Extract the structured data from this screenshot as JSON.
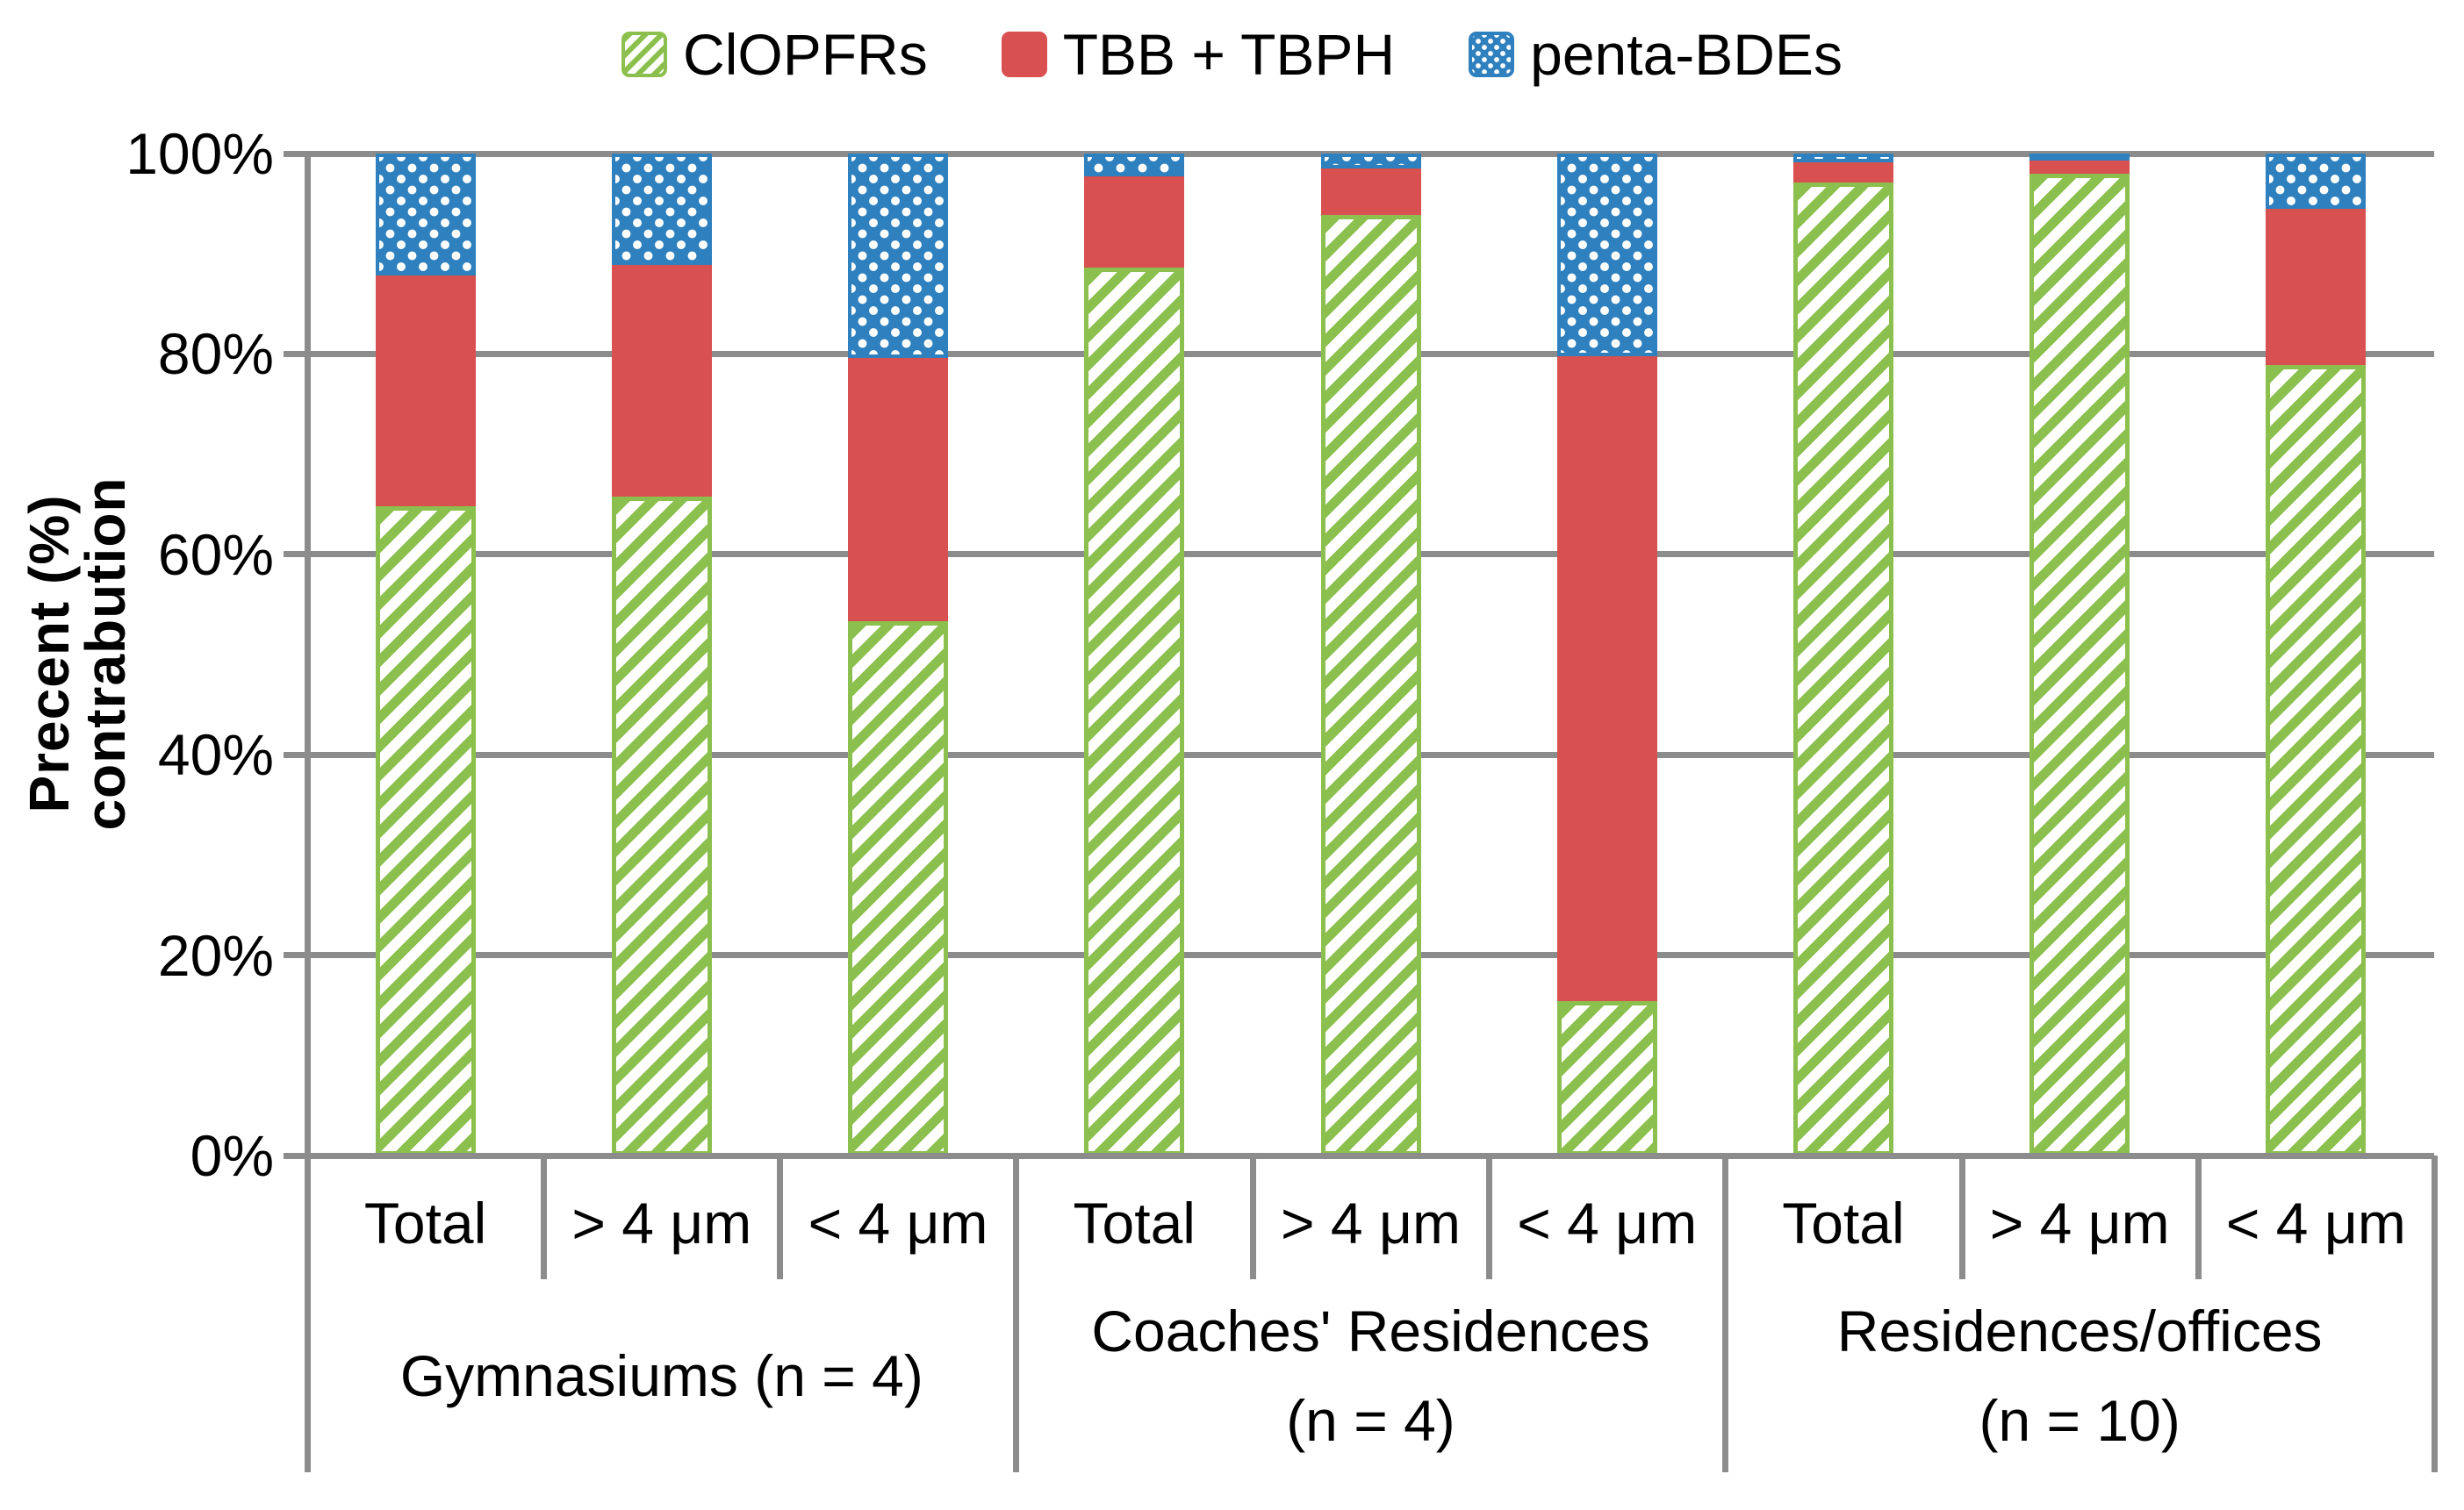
{
  "chart_data": {
    "type": "bar",
    "subtype": "stacked-100-percent",
    "title": "",
    "y_axis": {
      "label": "Precent (%) contrabution",
      "ticks": [
        "0%",
        "20%",
        "40%",
        "60%",
        "80%",
        "100%"
      ],
      "min": 0,
      "max": 100,
      "tick_step": 20,
      "grid": true
    },
    "legend_position": "top",
    "legend": [
      {
        "label": "ClOPFRs",
        "color": "#8CC04E",
        "pattern": "diagonal-hatch"
      },
      {
        "label": "TBB + TBPH",
        "color": "#D85050",
        "pattern": "solid"
      },
      {
        "label": "penta-BDEs",
        "color": "#2E80BE",
        "pattern": "dots"
      }
    ],
    "series_order": [
      "ClOPFRs",
      "TBB + TBPH",
      "penta-BDEs"
    ],
    "groups": [
      {
        "label_lines": [
          "Gymnasiums (n = 4)"
        ],
        "bars": [
          {
            "category": "Total",
            "values": [
              64.8,
              23.0,
              12.2
            ]
          },
          {
            "category": "> 4 μm",
            "values": [
              65.8,
              23.1,
              11.1
            ]
          },
          {
            "category": "< 4 μm",
            "values": [
              53.3,
              26.3,
              20.4
            ]
          }
        ]
      },
      {
        "label_lines": [
          "Coaches' Residences",
          "(n = 4)"
        ],
        "bars": [
          {
            "category": "Total",
            "values": [
              88.6,
              9.1,
              2.3
            ]
          },
          {
            "category": "> 4 μm",
            "values": [
              93.9,
              4.6,
              1.5
            ]
          },
          {
            "category": "< 4 μm",
            "values": [
              15.4,
              64.4,
              20.2
            ]
          }
        ]
      },
      {
        "label_lines": [
          "Residences/offices",
          "(n = 10)"
        ],
        "bars": [
          {
            "category": "Total",
            "values": [
              97.1,
              2.0,
              0.9
            ]
          },
          {
            "category": "> 4 μm",
            "values": [
              98.0,
              1.5,
              0.5
            ]
          },
          {
            "category": "< 4 μm",
            "values": [
              78.9,
              15.6,
              5.5
            ]
          }
        ]
      }
    ],
    "colors": {
      "clopfrs_green": "#8CC04E",
      "tbb_red": "#D85050",
      "penta_blue": "#2E80BE",
      "gridline_gray": "#8C8C8C",
      "text_black": "#000000"
    }
  }
}
